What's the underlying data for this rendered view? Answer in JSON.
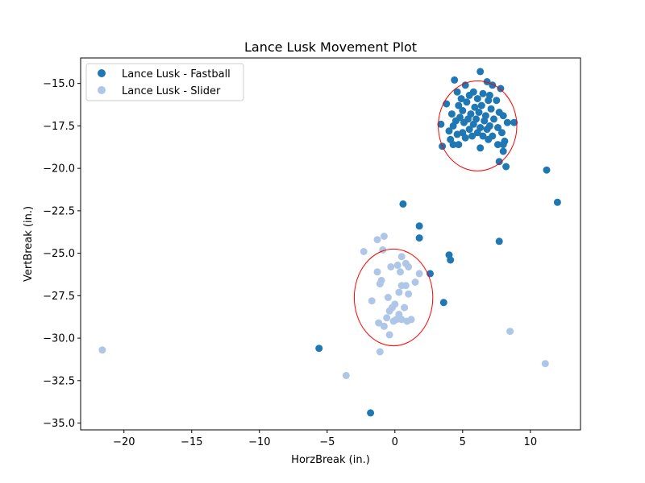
{
  "chart_data": {
    "type": "scatter",
    "title": "Lance Lusk Movement Plot",
    "xlabel": "HorzBreak (in.)",
    "ylabel": "VertBreak (in.)",
    "xlim": [
      -23.2,
      13.7
    ],
    "ylim": [
      -35.4,
      -13.5
    ],
    "x_ticks": [
      -20,
      -15,
      -10,
      -5,
      0,
      5,
      10
    ],
    "x_tick_labels": [
      "−20",
      "−15",
      "−10",
      "−5",
      "0",
      "5",
      "10"
    ],
    "y_ticks": [
      -35.0,
      -32.5,
      -30.0,
      -27.5,
      -25.0,
      -22.5,
      -20.0,
      -17.5,
      -15.0
    ],
    "y_tick_labels": [
      "−35.0",
      "−32.5",
      "−30.0",
      "−27.5",
      "−25.0",
      "−22.5",
      "−20.0",
      "−17.5",
      "−15.0"
    ],
    "grid": false,
    "legend_position": "top-left",
    "series": [
      {
        "name": "Lance Lusk - Fastball",
        "color": "#1f77b4",
        "points": [
          [
            6.3,
            -14.3
          ],
          [
            4.4,
            -14.8
          ],
          [
            6.8,
            -14.9
          ],
          [
            5.2,
            -15.1
          ],
          [
            7.2,
            -15.1
          ],
          [
            7.8,
            -15.3
          ],
          [
            4.6,
            -15.5
          ],
          [
            5.8,
            -15.5
          ],
          [
            6.5,
            -15.6
          ],
          [
            5.5,
            -15.7
          ],
          [
            7.0,
            -15.7
          ],
          [
            4.9,
            -15.9
          ],
          [
            6.1,
            -15.9
          ],
          [
            6.9,
            -16.0
          ],
          [
            7.5,
            -16.0
          ],
          [
            5.3,
            -16.1
          ],
          [
            3.8,
            -16.2
          ],
          [
            4.7,
            -16.3
          ],
          [
            6.4,
            -16.3
          ],
          [
            5.9,
            -16.4
          ],
          [
            7.1,
            -16.5
          ],
          [
            5.0,
            -16.6
          ],
          [
            6.2,
            -16.7
          ],
          [
            7.7,
            -16.7
          ],
          [
            4.2,
            -16.8
          ],
          [
            5.6,
            -16.8
          ],
          [
            6.7,
            -16.9
          ],
          [
            8.0,
            -16.9
          ],
          [
            4.8,
            -17.0
          ],
          [
            5.4,
            -17.1
          ],
          [
            6.0,
            -17.1
          ],
          [
            7.3,
            -17.1
          ],
          [
            4.5,
            -17.2
          ],
          [
            6.6,
            -17.2
          ],
          [
            5.1,
            -17.3
          ],
          [
            8.3,
            -17.3
          ],
          [
            8.8,
            -17.3
          ],
          [
            3.4,
            -17.4
          ],
          [
            5.8,
            -17.4
          ],
          [
            7.0,
            -17.5
          ],
          [
            4.3,
            -17.5
          ],
          [
            6.3,
            -17.6
          ],
          [
            7.6,
            -17.6
          ],
          [
            5.5,
            -17.7
          ],
          [
            6.8,
            -17.7
          ],
          [
            4.0,
            -17.8
          ],
          [
            5.0,
            -17.9
          ],
          [
            6.1,
            -17.9
          ],
          [
            7.9,
            -17.9
          ],
          [
            4.6,
            -18.0
          ],
          [
            5.7,
            -18.1
          ],
          [
            6.5,
            -18.1
          ],
          [
            7.2,
            -18.1
          ],
          [
            5.2,
            -18.2
          ],
          [
            4.1,
            -18.3
          ],
          [
            6.9,
            -18.3
          ],
          [
            8.1,
            -18.4
          ],
          [
            4.3,
            -18.6
          ],
          [
            4.7,
            -18.6
          ],
          [
            7.6,
            -18.6
          ],
          [
            8.0,
            -18.6
          ],
          [
            3.5,
            -18.7
          ],
          [
            6.3,
            -18.8
          ],
          [
            8.0,
            -19.0
          ],
          [
            7.7,
            -19.6
          ],
          [
            8.2,
            -19.9
          ],
          [
            11.2,
            -20.1
          ],
          [
            12.0,
            -22.0
          ],
          [
            0.6,
            -22.1
          ],
          [
            1.8,
            -23.4
          ],
          [
            1.8,
            -24.1
          ],
          [
            7.7,
            -24.3
          ],
          [
            4.0,
            -25.1
          ],
          [
            4.1,
            -25.4
          ],
          [
            2.6,
            -26.2
          ],
          [
            3.6,
            -27.9
          ],
          [
            -5.6,
            -30.6
          ],
          [
            -1.8,
            -34.4
          ]
        ]
      },
      {
        "name": "Lance Lusk - Slider",
        "color": "#aec7e8",
        "points": [
          [
            -0.8,
            -24.0
          ],
          [
            -1.3,
            -24.2
          ],
          [
            -2.3,
            -24.9
          ],
          [
            -0.9,
            -24.8
          ],
          [
            0.5,
            -25.2
          ],
          [
            -0.3,
            -25.8
          ],
          [
            0.2,
            -25.7
          ],
          [
            0.8,
            -25.6
          ],
          [
            1.0,
            -25.8
          ],
          [
            -1.3,
            -26.1
          ],
          [
            0.4,
            -26.1
          ],
          [
            1.8,
            -26.2
          ],
          [
            -1.0,
            -26.6
          ],
          [
            -1.1,
            -26.8
          ],
          [
            0.5,
            -26.9
          ],
          [
            0.8,
            -26.9
          ],
          [
            1.5,
            -26.7
          ],
          [
            0.3,
            -27.3
          ],
          [
            1.0,
            -27.4
          ],
          [
            -0.5,
            -27.6
          ],
          [
            -1.7,
            -27.8
          ],
          [
            0.0,
            -28.0
          ],
          [
            -0.2,
            -28.2
          ],
          [
            0.7,
            -28.2
          ],
          [
            -0.4,
            -28.4
          ],
          [
            0.3,
            -28.6
          ],
          [
            -0.6,
            -28.8
          ],
          [
            0.1,
            -28.9
          ],
          [
            0.5,
            -28.9
          ],
          [
            1.2,
            -28.9
          ],
          [
            -0.1,
            -29.0
          ],
          [
            0.9,
            -29.0
          ],
          [
            -1.2,
            -29.1
          ],
          [
            -0.8,
            -29.3
          ],
          [
            -0.4,
            -29.8
          ],
          [
            -1.1,
            -30.8
          ],
          [
            8.5,
            -29.6
          ],
          [
            11.1,
            -31.5
          ],
          [
            -3.6,
            -32.2
          ],
          [
            -21.6,
            -30.7
          ]
        ]
      }
    ],
    "ellipses": [
      {
        "center": [
          6.1,
          -17.5
        ],
        "radii": [
          2.9,
          2.65
        ],
        "color": "#ff0000"
      },
      {
        "center": [
          -0.1,
          -27.6
        ],
        "radii": [
          2.9,
          2.85
        ],
        "color": "#ff0000"
      }
    ]
  }
}
